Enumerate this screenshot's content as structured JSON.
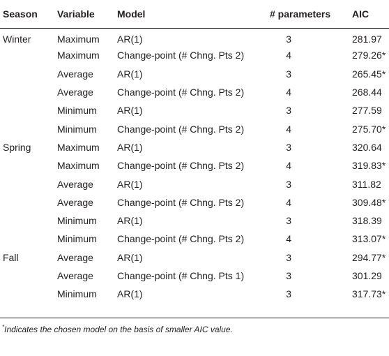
{
  "table": {
    "headers": {
      "season": "Season",
      "variable": "Variable",
      "model": "Model",
      "params": "# parameters",
      "aic": "AIC"
    },
    "rows": [
      {
        "season": "Winter",
        "variable": "Maximum",
        "model": "AR(1)",
        "params": "3",
        "aic": "281.97"
      },
      {
        "season": "",
        "variable": "Maximum",
        "model": "Change-point (# Chng. Pts 2)",
        "params": "4",
        "aic": "279.26*"
      },
      {
        "season": "",
        "variable": "Average",
        "model": "AR(1)",
        "params": "3",
        "aic": "265.45*"
      },
      {
        "season": "",
        "variable": "Average",
        "model": "Change-point (# Chng. Pts 2)",
        "params": "4",
        "aic": "268.44"
      },
      {
        "season": "",
        "variable": "Minimum",
        "model": "AR(1)",
        "params": "3",
        "aic": "277.59"
      },
      {
        "season": "",
        "variable": "Minimum",
        "model": "Change-point (# Chng. Pts 2)",
        "params": "4",
        "aic": "275.70*"
      },
      {
        "season": "Spring",
        "variable": "Maximum",
        "model": "AR(1)",
        "params": "3",
        "aic": "320.64"
      },
      {
        "season": "",
        "variable": "Maximum",
        "model": "Change-point (# Chng. Pts 2)",
        "params": "4",
        "aic": "319.83*"
      },
      {
        "season": "",
        "variable": "Average",
        "model": "AR(1)",
        "params": "3",
        "aic": "311.82"
      },
      {
        "season": "",
        "variable": "Average",
        "model": "Change-point (# Chng. Pts 2)",
        "params": "4",
        "aic": "309.48*"
      },
      {
        "season": "",
        "variable": "Minimum",
        "model": "AR(1)",
        "params": "3",
        "aic": "318.39"
      },
      {
        "season": "",
        "variable": "Minimum",
        "model": "Change-point (# Chng. Pts 2)",
        "params": "4",
        "aic": "313.07*"
      },
      {
        "season": "Fall",
        "variable": "Average",
        "model": "AR(1)",
        "params": "3",
        "aic": "294.77*"
      },
      {
        "season": "",
        "variable": "Average",
        "model": "Change-point (# Chng. Pts 1)",
        "params": "3",
        "aic": "301.29"
      },
      {
        "season": "",
        "variable": "Minimum",
        "model": "AR(1)",
        "params": "3",
        "aic": "317.73*"
      }
    ]
  },
  "footnote": {
    "marker": "*",
    "text": "Indicates the chosen model on the basis of smaller AIC value."
  }
}
